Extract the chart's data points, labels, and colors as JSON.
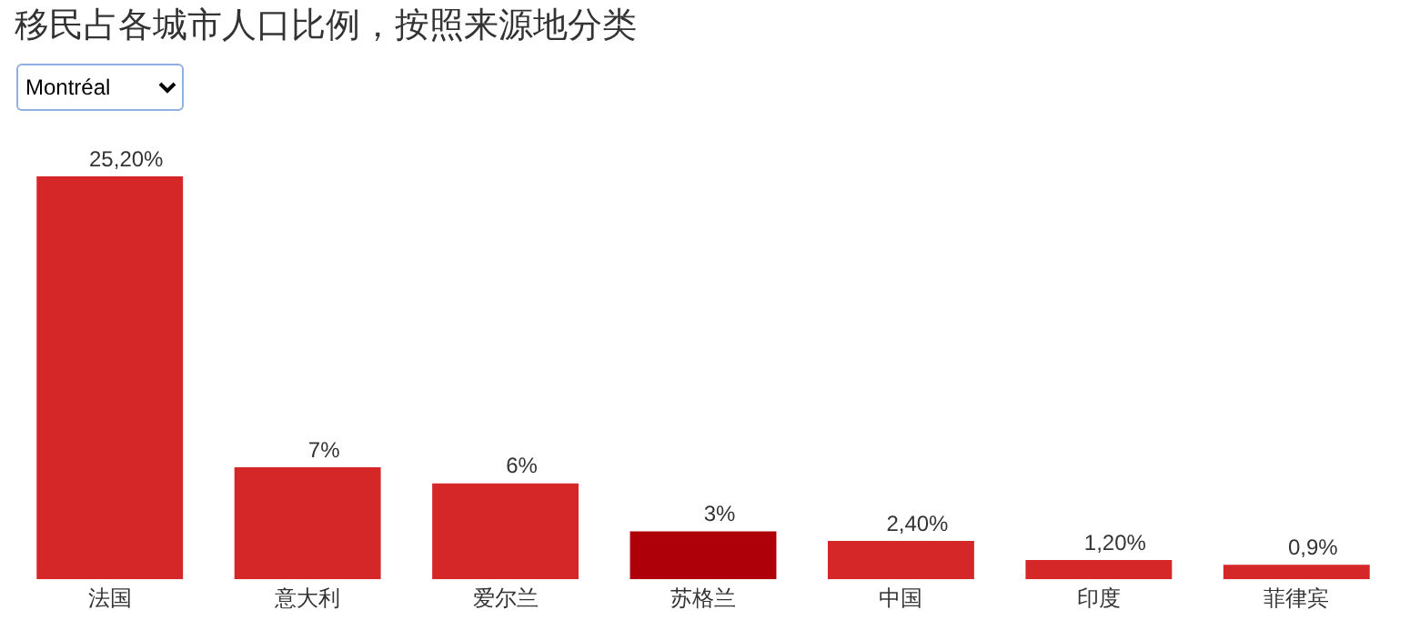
{
  "chart_data": {
    "type": "bar",
    "title": "移民占各城市人口比例，按照来源地分类",
    "annotations": [
      "Montréal"
    ],
    "categories": [
      "法国",
      "意大利",
      "爱尔兰",
      "苏格兰",
      "中国",
      "印度",
      "菲律宾"
    ],
    "values": [
      25.2,
      7,
      6,
      3,
      2.4,
      1.2,
      0.9
    ],
    "colors": [
      "#d62728",
      "#d62728",
      "#d62728",
      "#ad0009",
      "#d62728",
      "#d62728",
      "#d62728"
    ],
    "value_labels": [
      "25,20%",
      "7%",
      "6%",
      "3%",
      "2,40%",
      "1,20%",
      "0,9%"
    ],
    "grid": false,
    "legend": false
  }
}
